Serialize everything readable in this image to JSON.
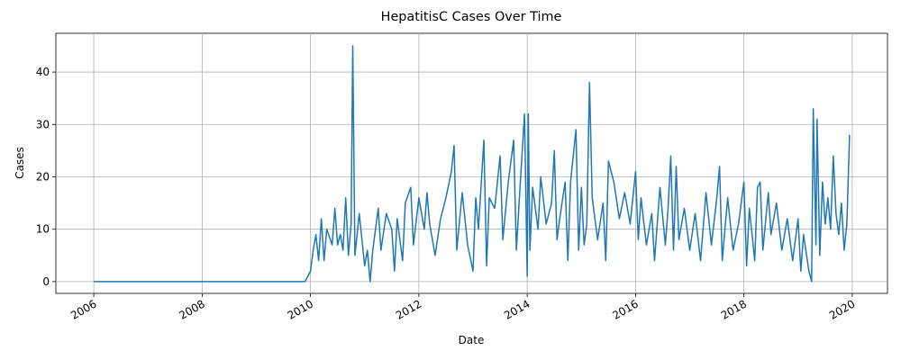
{
  "chart_data": {
    "type": "line",
    "title": "HepatitisC Cases Over Time",
    "xlabel": "Date",
    "ylabel": "Cases",
    "xlim": [
      2005.3,
      2020.65
    ],
    "xticks": [
      2006,
      2008,
      2010,
      2012,
      2014,
      2016,
      2018,
      2020
    ],
    "ylim": [
      -2.25,
      47.4
    ],
    "yticks": [
      0,
      10,
      20,
      30,
      40
    ],
    "grid": true,
    "series": [
      {
        "color": "#1f77b4",
        "x": [
          2006,
          2009.9,
          2010.0,
          2010.05,
          2010.1,
          2010.15,
          2010.2,
          2010.25,
          2010.3,
          2010.4,
          2010.45,
          2010.5,
          2010.55,
          2010.6,
          2010.65,
          2010.7,
          2010.75,
          2010.78,
          2010.82,
          2010.9,
          2011.0,
          2011.05,
          2011.1,
          2011.15,
          2011.25,
          2011.3,
          2011.4,
          2011.5,
          2011.55,
          2011.6,
          2011.7,
          2011.75,
          2011.85,
          2011.9,
          2012.0,
          2012.1,
          2012.15,
          2012.2,
          2012.3,
          2012.4,
          2012.5,
          2012.6,
          2012.65,
          2012.7,
          2012.8,
          2012.9,
          2013.0,
          2013.05,
          2013.1,
          2013.2,
          2013.25,
          2013.3,
          2013.4,
          2013.5,
          2013.55,
          2013.65,
          2013.75,
          2013.8,
          2013.85,
          2013.95,
          2014.0,
          2014.02,
          2014.05,
          2014.1,
          2014.2,
          2014.25,
          2014.35,
          2014.45,
          2014.5,
          2014.55,
          2014.6,
          2014.7,
          2014.75,
          2014.8,
          2014.9,
          2014.95,
          2015.0,
          2015.05,
          2015.1,
          2015.15,
          2015.2,
          2015.3,
          2015.4,
          2015.45,
          2015.5,
          2015.6,
          2015.7,
          2015.8,
          2015.9,
          2016.0,
          2016.05,
          2016.1,
          2016.2,
          2016.3,
          2016.35,
          2016.45,
          2016.55,
          2016.6,
          2016.65,
          2016.7,
          2016.75,
          2016.8,
          2016.9,
          2017.0,
          2017.1,
          2017.2,
          2017.3,
          2017.4,
          2017.5,
          2017.55,
          2017.6,
          2017.7,
          2017.8,
          2017.9,
          2018.0,
          2018.05,
          2018.1,
          2018.2,
          2018.25,
          2018.3,
          2018.35,
          2018.45,
          2018.5,
          2018.6,
          2018.7,
          2018.8,
          2018.9,
          2019.0,
          2019.05,
          2019.1,
          2019.2,
          2019.25,
          2019.28,
          2019.33,
          2019.35,
          2019.4,
          2019.45,
          2019.5,
          2019.55,
          2019.6,
          2019.65,
          2019.7,
          2019.75,
          2019.8,
          2019.85,
          2019.9,
          2019.95
        ],
        "values": [
          0,
          0,
          2,
          6,
          9,
          4,
          12,
          4,
          10,
          7,
          14,
          7,
          9,
          6,
          16,
          5,
          11,
          45,
          5,
          13,
          3,
          6,
          0,
          6,
          14,
          6,
          13,
          10,
          2,
          12,
          4,
          15,
          18,
          7,
          16,
          10,
          17,
          11,
          5,
          12,
          16,
          21,
          26,
          6,
          17,
          7,
          2,
          16,
          10,
          27,
          3,
          16,
          14,
          24,
          8,
          19,
          27,
          6,
          15,
          32,
          1,
          32,
          6,
          18,
          10,
          20,
          11,
          15,
          25,
          8,
          12,
          19,
          4,
          19,
          29,
          6,
          18,
          7,
          11,
          38,
          16,
          8,
          15,
          4,
          23,
          19,
          12,
          17,
          11,
          21,
          8,
          16,
          7,
          13,
          4,
          18,
          7,
          14,
          24,
          6,
          22,
          8,
          14,
          6,
          13,
          4,
          17,
          7,
          16,
          22,
          4,
          16,
          6,
          11,
          19,
          3,
          14,
          4,
          18,
          19,
          6,
          17,
          9,
          15,
          6,
          12,
          4,
          12,
          2,
          9,
          2,
          0,
          33,
          7,
          31,
          5,
          19,
          11,
          16,
          10,
          24,
          13,
          9,
          15,
          6,
          11,
          28
        ]
      }
    ]
  }
}
